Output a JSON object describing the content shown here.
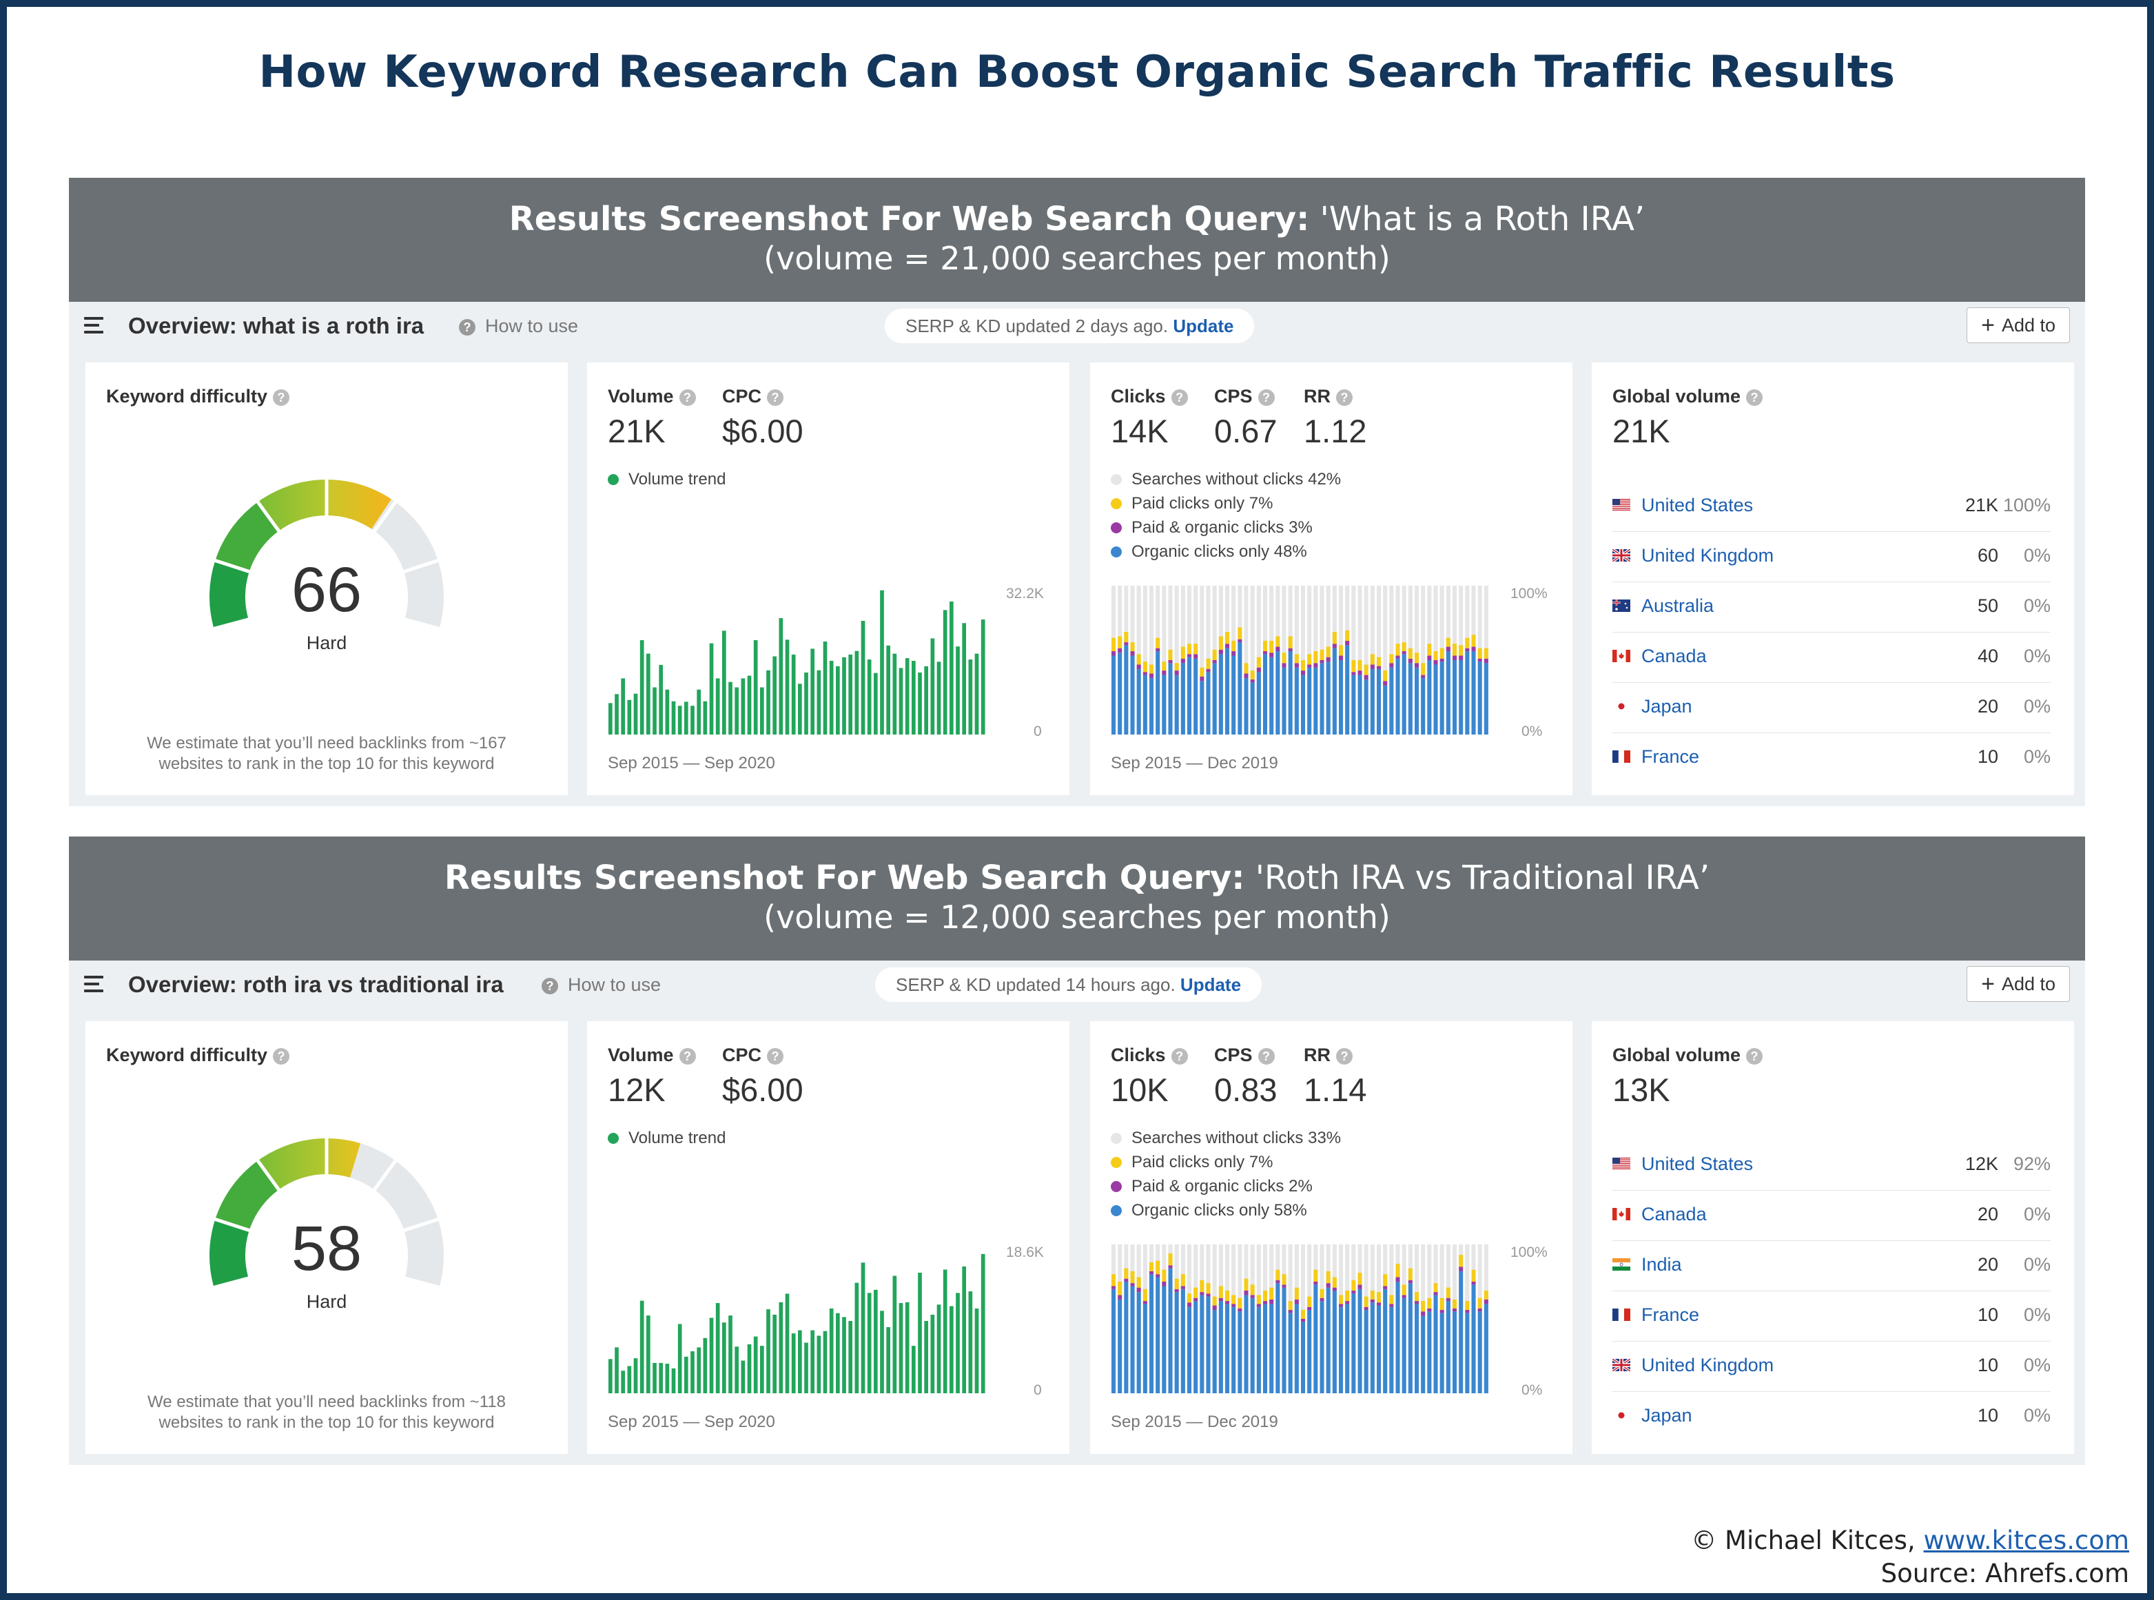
{
  "title": "How Keyword Research Can Boost Organic Search Traffic Results",
  "colors": {
    "frame": "#13365a",
    "header_bg": "#6a7073",
    "volume_bar": "#22a55b",
    "organic": "#3a87d0",
    "paid": "#f5cc18",
    "paid_organic": "#9b3aa5",
    "no_click": "#e6e6e6",
    "link": "#1c5fb0"
  },
  "panels": [
    {
      "header_bold": "Results Screenshot  For Web Search Query:",
      "header_query": "'What is a Roth IRA’",
      "header_volume": "(volume = 21,000 searches per month)",
      "overview_title": "Overview: what is a roth ira",
      "how_to_use": "How to use",
      "serp_text": "SERP & KD updated 2 days ago.",
      "serp_link": "Update",
      "add_to": "Add to",
      "kd": {
        "label": "Keyword difficulty",
        "value": 66,
        "value_text": "66",
        "rating": "Hard",
        "note_line1": "We estimate that you’ll need backlinks from ~167",
        "note_line2": "websites to rank in the top 10 for this keyword"
      },
      "volume": {
        "label": "Volume",
        "value": "21K",
        "cpc_label": "CPC",
        "cpc": "$6.00",
        "trend_label": "Volume trend",
        "axis_max": "32.2K",
        "axis_min": "0",
        "date_range": "Sep 2015 — Sep 2020"
      },
      "clicks": {
        "clicks_label": "Clicks",
        "clicks": "14K",
        "cps_label": "CPS",
        "cps": "0.67",
        "rr_label": "RR",
        "rr": "1.12",
        "legend": [
          "Searches without clicks 42%",
          "Paid clicks only 7%",
          "Paid & organic clicks 3%",
          "Organic clicks only 48%"
        ],
        "axis_max": "100%",
        "axis_min": "0%",
        "date_range": "Sep 2015 — Dec 2019"
      },
      "global": {
        "label": "Global volume",
        "value": "21K",
        "countries": [
          {
            "flag": "us-flag-icon",
            "name": "United States",
            "volume": "21K",
            "pct": "100%"
          },
          {
            "flag": "uk-flag-icon",
            "name": "United Kingdom",
            "volume": "60",
            "pct": "0%"
          },
          {
            "flag": "au-flag-icon",
            "name": "Australia",
            "volume": "50",
            "pct": "0%"
          },
          {
            "flag": "ca-flag-icon",
            "name": "Canada",
            "volume": "40",
            "pct": "0%"
          },
          {
            "flag": "jp-flag-icon",
            "name": "Japan",
            "volume": "20",
            "pct": "0%"
          },
          {
            "flag": "fr-flag-icon",
            "name": "France",
            "volume": "10",
            "pct": "0%"
          }
        ]
      }
    },
    {
      "header_bold": "Results Screenshot  For Web Search Query:",
      "header_query": "'Roth IRA vs Traditional IRA’",
      "header_volume": "(volume = 12,000 searches per month)",
      "overview_title": "Overview: roth ira vs traditional ira",
      "how_to_use": "How to use",
      "serp_text": "SERP & KD updated 14 hours ago.",
      "serp_link": "Update",
      "add_to": "Add to",
      "kd": {
        "label": "Keyword difficulty",
        "value": 58,
        "value_text": "58",
        "rating": "Hard",
        "note_line1": "We estimate that you’ll need backlinks from ~118",
        "note_line2": "websites to rank in the top 10 for this keyword"
      },
      "volume": {
        "label": "Volume",
        "value": "12K",
        "cpc_label": "CPC",
        "cpc": "$6.00",
        "trend_label": "Volume trend",
        "axis_max": "18.6K",
        "axis_min": "0",
        "date_range": "Sep 2015 — Sep 2020"
      },
      "clicks": {
        "clicks_label": "Clicks",
        "clicks": "10K",
        "cps_label": "CPS",
        "cps": "0.83",
        "rr_label": "RR",
        "rr": "1.14",
        "legend": [
          "Searches without clicks 33%",
          "Paid clicks only 7%",
          "Paid & organic clicks 2%",
          "Organic clicks only 58%"
        ],
        "axis_max": "100%",
        "axis_min": "0%",
        "date_range": "Sep 2015 — Dec 2019"
      },
      "global": {
        "label": "Global volume",
        "value": "13K",
        "countries": [
          {
            "flag": "us-flag-icon",
            "name": "United States",
            "volume": "12K",
            "pct": "92%"
          },
          {
            "flag": "ca-flag-icon",
            "name": "Canada",
            "volume": "20",
            "pct": "0%"
          },
          {
            "flag": "in-flag-icon",
            "name": "India",
            "volume": "20",
            "pct": "0%"
          },
          {
            "flag": "fr-flag-icon",
            "name": "France",
            "volume": "10",
            "pct": "0%"
          },
          {
            "flag": "uk-flag-icon",
            "name": "United Kingdom",
            "volume": "10",
            "pct": "0%"
          },
          {
            "flag": "jp-flag-icon",
            "name": "Japan",
            "volume": "10",
            "pct": "0%"
          }
        ]
      }
    }
  ],
  "chart_data": [
    {
      "type": "bar",
      "panel": 0,
      "title": "Volume trend",
      "x_range": [
        "Sep 2015",
        "Sep 2020"
      ],
      "ylim": [
        0,
        32200
      ],
      "values": [
        7000,
        9000,
        12500,
        7700,
        9100,
        21000,
        18000,
        10500,
        15500,
        10000,
        7400,
        6400,
        7300,
        6400,
        10000,
        7400,
        20300,
        12500,
        23100,
        11700,
        10500,
        12500,
        13100,
        21000,
        10500,
        14300,
        17400,
        25900,
        21100,
        17800,
        11300,
        13800,
        19100,
        14300,
        20700,
        16400,
        15200,
        17200,
        17800,
        18600,
        25300,
        16700,
        13700,
        32100,
        19800,
        18000,
        14800,
        17000,
        16400,
        13800,
        15200,
        21400,
        16200,
        27700,
        29600,
        19600,
        24800,
        16700,
        18000,
        25600
      ]
    },
    {
      "type": "bar",
      "panel": 1,
      "title": "Volume trend",
      "x_range": [
        "Sep 2015",
        "Sep 2020"
      ],
      "ylim": [
        0,
        18600
      ],
      "values": [
        4400,
        5900,
        2900,
        3500,
        4500,
        11900,
        10000,
        3900,
        3900,
        3800,
        3200,
        8900,
        4700,
        5400,
        5900,
        7100,
        9700,
        11600,
        9100,
        10000,
        6000,
        4200,
        6300,
        7300,
        6100,
        10800,
        10100,
        11700,
        12800,
        7700,
        8100,
        6500,
        8100,
        7400,
        8000,
        10900,
        10300,
        9800,
        9300,
        14200,
        16800,
        12900,
        13300,
        10600,
        8500,
        15100,
        11600,
        11700,
        6100,
        15500,
        9300,
        10100,
        11400,
        15900,
        11200,
        12900,
        16300,
        13100,
        10900,
        17900
      ]
    },
    {
      "type": "bar",
      "panel": 0,
      "title": "Clicks distribution",
      "stacked": true,
      "x_range": [
        "Sep 2015",
        "Dec 2019"
      ],
      "ylim": [
        0,
        100
      ],
      "unit": "%",
      "series": [
        {
          "name": "Organic clicks only",
          "values": [
            53,
            55,
            60,
            53,
            44,
            40,
            38,
            56,
            40,
            48,
            40,
            48,
            52,
            51,
            36,
            42,
            48,
            54,
            58,
            53,
            62,
            38,
            35,
            42,
            54,
            52,
            56,
            45,
            56,
            45,
            40,
            45,
            45,
            48,
            49,
            58,
            50,
            60,
            40,
            40,
            37,
            44,
            44,
            33,
            45,
            51,
            54,
            48,
            45,
            38,
            50,
            47,
            49,
            56,
            50,
            50,
            56,
            56,
            49,
            48
          ]
        },
        {
          "name": "Paid & organic clicks",
          "values": [
            3,
            3,
            2,
            3,
            3,
            2,
            3,
            2,
            3,
            2,
            3,
            3,
            2,
            3,
            3,
            2,
            2,
            3,
            3,
            3,
            2,
            3,
            2,
            3,
            2,
            3,
            3,
            3,
            2,
            3,
            3,
            2,
            3,
            2,
            3,
            3,
            3,
            3,
            2,
            3,
            3,
            3,
            2,
            3,
            3,
            2,
            2,
            3,
            3,
            2,
            3,
            3,
            2,
            3,
            3,
            3,
            2,
            3,
            2,
            3
          ]
        },
        {
          "name": "Paid clicks only",
          "values": [
            9,
            8,
            7,
            6,
            7,
            7,
            6,
            7,
            6,
            7,
            5,
            8,
            7,
            7,
            6,
            7,
            7,
            9,
            8,
            7,
            8,
            7,
            6,
            7,
            7,
            8,
            7,
            7,
            8,
            6,
            7,
            7,
            8,
            7,
            7,
            8,
            7,
            7,
            8,
            7,
            7,
            7,
            6,
            7,
            6,
            8,
            6,
            7,
            7,
            8,
            8,
            6,
            7,
            6,
            8,
            7,
            7,
            8,
            7,
            7
          ]
        }
      ]
    },
    {
      "type": "bar",
      "panel": 1,
      "title": "Clicks distribution",
      "stacked": true,
      "x_range": [
        "Sep 2015",
        "Dec 2019"
      ],
      "ylim": [
        0,
        100
      ],
      "unit": "%",
      "series": [
        {
          "name": "Organic clicks only",
          "values": [
            70,
            63,
            75,
            72,
            68,
            60,
            80,
            78,
            72,
            84,
            68,
            70,
            58,
            62,
            66,
            65,
            56,
            62,
            60,
            58,
            55,
            66,
            64,
            58,
            60,
            60,
            74,
            71,
            54,
            60,
            48,
            56,
            73,
            62,
            71,
            69,
            58,
            60,
            67,
            70,
            56,
            61,
            59,
            70,
            58,
            75,
            64,
            74,
            60,
            52,
            55,
            66,
            54,
            62,
            55,
            82,
            54,
            73,
            55,
            60
          ]
        },
        {
          "name": "Paid & organic clicks",
          "values": [
            2,
            3,
            2,
            2,
            3,
            2,
            2,
            2,
            3,
            2,
            2,
            2,
            3,
            2,
            2,
            2,
            3,
            2,
            2,
            2,
            2,
            3,
            2,
            2,
            2,
            3,
            2,
            2,
            2,
            3,
            2,
            2,
            2,
            2,
            3,
            2,
            2,
            2,
            2,
            3,
            2,
            2,
            2,
            2,
            2,
            3,
            2,
            2,
            2,
            3,
            2,
            2,
            2,
            2,
            2,
            3,
            2,
            2,
            2,
            3
          ]
        },
        {
          "name": "Paid clicks only",
          "values": [
            8,
            9,
            7,
            8,
            7,
            8,
            6,
            9,
            8,
            8,
            7,
            8,
            6,
            7,
            8,
            7,
            6,
            8,
            7,
            6,
            7,
            8,
            7,
            6,
            7,
            8,
            7,
            7,
            6,
            8,
            6,
            7,
            8,
            6,
            8,
            7,
            6,
            7,
            7,
            8,
            7,
            6,
            7,
            8,
            6,
            9,
            7,
            8,
            6,
            7,
            7,
            6,
            8,
            7,
            6,
            8,
            6,
            8,
            7,
            6
          ]
        }
      ]
    }
  ]
}
